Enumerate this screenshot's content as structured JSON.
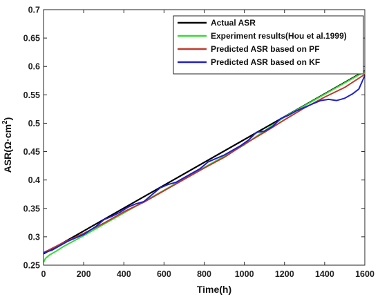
{
  "chart_data": {
    "type": "line",
    "xlabel": "Time(h)",
    "ylabel_main": "ASR(Ω·cm",
    "ylabel_sup": "2",
    "ylabel_close": ")",
    "xlim": [
      0,
      1600
    ],
    "ylim": [
      0.25,
      0.7
    ],
    "x_ticks": [
      0,
      200,
      400,
      600,
      800,
      1000,
      1200,
      1400,
      1600
    ],
    "y_ticks": [
      0.25,
      0.3,
      0.35,
      0.4,
      0.45,
      0.5,
      0.55,
      0.6,
      0.65,
      0.7
    ],
    "legend_position": "top-right",
    "grid": false,
    "series": [
      {
        "name": "Actual ASR",
        "color": "#000000",
        "points": [
          [
            0,
            0.27
          ],
          [
            1600,
            0.592
          ]
        ]
      },
      {
        "name": "Experiment results(Hou et al.1999)",
        "color": "#33dd33",
        "points": [
          [
            0,
            0.255
          ],
          [
            10,
            0.262
          ],
          [
            30,
            0.268
          ],
          [
            60,
            0.274
          ],
          [
            100,
            0.283
          ],
          [
            200,
            0.302
          ],
          [
            400,
            0.342
          ],
          [
            600,
            0.382
          ],
          [
            800,
            0.422
          ],
          [
            1000,
            0.462
          ],
          [
            1200,
            0.511
          ],
          [
            1400,
            0.551
          ],
          [
            1600,
            0.591
          ]
        ]
      },
      {
        "name": "Predicted ASR based on PF",
        "color": "#c0392b",
        "points": [
          [
            0,
            0.272
          ],
          [
            100,
            0.29
          ],
          [
            200,
            0.306
          ],
          [
            300,
            0.324
          ],
          [
            400,
            0.344
          ],
          [
            500,
            0.361
          ],
          [
            600,
            0.381
          ],
          [
            700,
            0.401
          ],
          [
            800,
            0.421
          ],
          [
            900,
            0.44
          ],
          [
            1000,
            0.463
          ],
          [
            1100,
            0.484
          ],
          [
            1200,
            0.506
          ],
          [
            1300,
            0.527
          ],
          [
            1400,
            0.546
          ],
          [
            1500,
            0.563
          ],
          [
            1600,
            0.586
          ]
        ]
      },
      {
        "name": "Predicted ASR based on KF",
        "color": "#1f1fd0",
        "points": [
          [
            0,
            0.272
          ],
          [
            40,
            0.276
          ],
          [
            80,
            0.284
          ],
          [
            120,
            0.292
          ],
          [
            160,
            0.298
          ],
          [
            200,
            0.304
          ],
          [
            260,
            0.318
          ],
          [
            300,
            0.33
          ],
          [
            340,
            0.336
          ],
          [
            380,
            0.343
          ],
          [
            420,
            0.352
          ],
          [
            460,
            0.358
          ],
          [
            500,
            0.362
          ],
          [
            540,
            0.374
          ],
          [
            580,
            0.386
          ],
          [
            620,
            0.392
          ],
          [
            660,
            0.396
          ],
          [
            700,
            0.404
          ],
          [
            740,
            0.412
          ],
          [
            780,
            0.42
          ],
          [
            820,
            0.432
          ],
          [
            860,
            0.438
          ],
          [
            900,
            0.444
          ],
          [
            940,
            0.452
          ],
          [
            980,
            0.46
          ],
          [
            1020,
            0.47
          ],
          [
            1060,
            0.484
          ],
          [
            1100,
            0.486
          ],
          [
            1140,
            0.494
          ],
          [
            1180,
            0.508
          ],
          [
            1220,
            0.514
          ],
          [
            1260,
            0.522
          ],
          [
            1300,
            0.528
          ],
          [
            1340,
            0.534
          ],
          [
            1380,
            0.54
          ],
          [
            1420,
            0.542
          ],
          [
            1460,
            0.54
          ],
          [
            1500,
            0.544
          ],
          [
            1540,
            0.552
          ],
          [
            1570,
            0.56
          ],
          [
            1600,
            0.584
          ]
        ]
      }
    ]
  }
}
